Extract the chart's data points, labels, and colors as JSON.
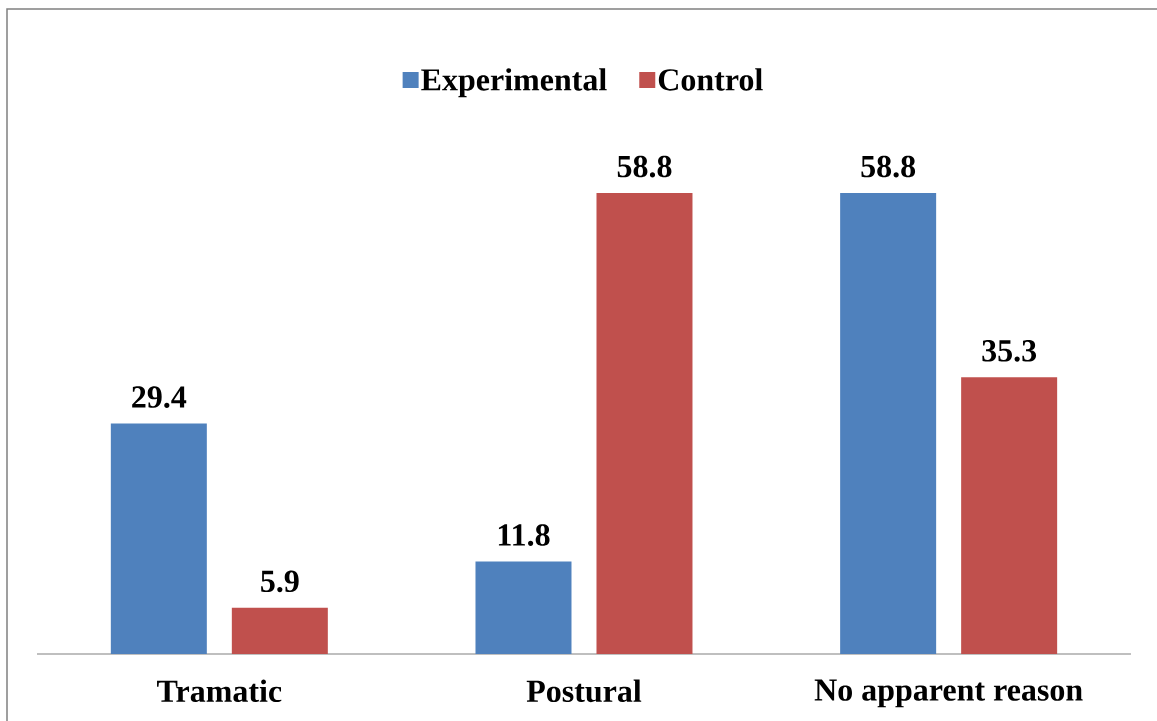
{
  "chart_data": {
    "type": "bar",
    "categories": [
      "Tramatic",
      "Postural",
      "No apparent reason"
    ],
    "series": [
      {
        "name": "Experimental",
        "color": "#4f81bd",
        "values": [
          29.4,
          11.8,
          58.8
        ]
      },
      {
        "name": "Control",
        "color": "#c0504d",
        "values": [
          5.9,
          58.8,
          35.3
        ]
      }
    ],
    "tick_labels": "x",
    "data_labels": true,
    "legend": "top",
    "grid": false
  }
}
